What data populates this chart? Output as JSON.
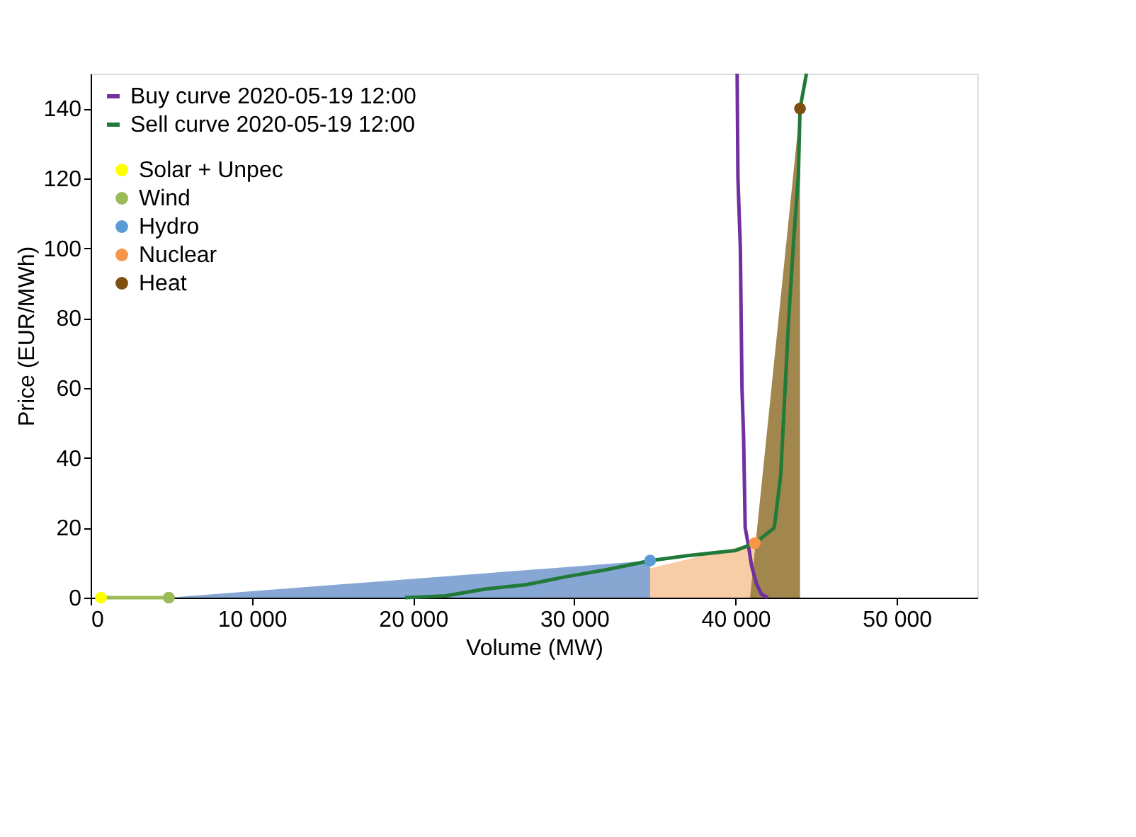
{
  "chart_data": {
    "type": "line",
    "xlabel": "Volume (MW)",
    "ylabel": "Price (EUR/MWh)",
    "xlim": [
      0,
      55000
    ],
    "xticks": [
      0,
      {
        "value": 10000,
        "label": "10 000"
      },
      {
        "value": 20000,
        "label": "20 000"
      },
      {
        "value": 30000,
        "label": "30 000"
      },
      {
        "value": 40000,
        "label": "40 000"
      },
      {
        "value": 50000,
        "label": "50 000"
      }
    ],
    "ylim": [
      0,
      150
    ],
    "yticks": [
      0,
      20,
      40,
      60,
      80,
      100,
      120,
      140
    ],
    "grid": false,
    "legend": "top left",
    "series": [
      {
        "type": "area",
        "color": "#f8c9a0",
        "x": [
          27100,
          41200
        ],
        "values": [
          0,
          15.6
        ]
      },
      {
        "type": "area",
        "color": "#7fa2d2",
        "x": [
          4850,
          34700
        ],
        "values": [
          0,
          10.6
        ]
      },
      {
        "type": "area",
        "color": "#9c7f45",
        "x": [
          40900,
          44000
        ],
        "values": [
          0,
          140
        ]
      },
      {
        "type": "line",
        "color": "#9bbb59",
        "x": [
          640,
          4850
        ],
        "values": [
          0,
          0
        ]
      },
      {
        "type": "line",
        "name": "Buy curve 2020-05-19 12:00",
        "color": "#7030a0",
        "x": [
          40100,
          40150,
          40300,
          40400,
          40500,
          40600,
          40800,
          41000,
          41300,
          41600,
          42000
        ],
        "values": [
          150,
          120,
          100,
          60,
          46,
          20,
          15,
          9,
          4,
          1,
          0
        ]
      },
      {
        "type": "line",
        "name": "Sell curve 2020-05-19 12:00",
        "color": "#217a3a",
        "x": [
          19500,
          22000,
          24500,
          27000,
          29500,
          32000,
          34700,
          37000,
          40000,
          41200,
          42400,
          42800,
          43300,
          43600,
          43900,
          44000,
          44400
        ],
        "values": [
          0,
          0.5,
          2.5,
          3.7,
          6,
          8,
          10.6,
          12,
          13.5,
          15.6,
          20,
          35,
          80,
          102,
          121,
          140,
          150
        ]
      },
      {
        "type": "scatter",
        "name": "Solar + Unpec",
        "color": "#ffff00",
        "x": [
          640
        ],
        "values": [
          0
        ]
      },
      {
        "type": "scatter",
        "name": "Wind",
        "color": "#9bbb59",
        "x": [
          4850
        ],
        "values": [
          0
        ]
      },
      {
        "type": "scatter",
        "name": "Hydro",
        "color": "#5b9bd5",
        "x": [
          34700
        ],
        "values": [
          10.6
        ]
      },
      {
        "type": "scatter",
        "name": "Nuclear",
        "color": "#f79646",
        "x": [
          41200
        ],
        "values": [
          15.6
        ]
      },
      {
        "type": "scatter",
        "name": "Heat",
        "color": "#7f4f0f",
        "x": [
          44000
        ],
        "values": [
          140
        ]
      }
    ]
  }
}
